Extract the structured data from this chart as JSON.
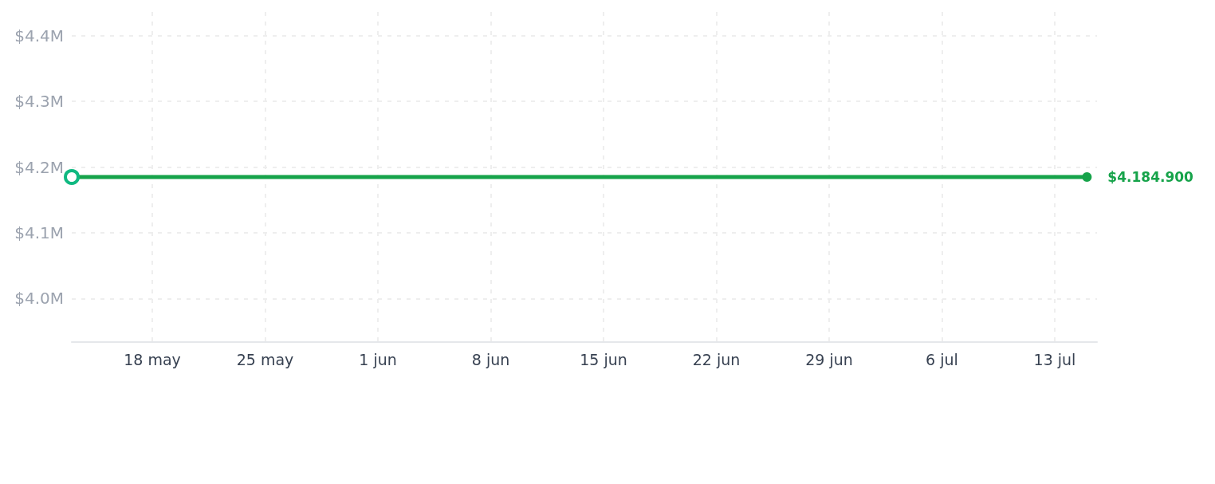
{
  "chart_data": {
    "type": "line",
    "x": [
      "--05-13",
      "--07-15"
    ],
    "series": [
      {
        "color": "#16a34a",
        "colors": [
          "#10b981",
          "#16a34a"
        ],
        "values": [
          4184900,
          4184900
        ],
        "value_labels": [
          null,
          "$4.184.900"
        ]
      }
    ],
    "xlim": [
      "--05-13",
      "--07-15T15:00"
    ],
    "xticks": [
      {
        "value": "--05-18",
        "label": "18 may"
      },
      {
        "value": "--05-25",
        "label": "25 may"
      },
      {
        "value": "--06-01",
        "label": "1 jun"
      },
      {
        "value": "--06-08",
        "label": "8 jun"
      },
      {
        "value": "--06-15",
        "label": "15 jun"
      },
      {
        "value": "--06-22",
        "label": "22 jun"
      },
      {
        "value": "--06-29",
        "label": "29 jun"
      },
      {
        "value": "--07-06",
        "label": "6 jul"
      },
      {
        "value": "--07-13",
        "label": "13 jul"
      }
    ],
    "ylim": [
      3933800,
      4436000
    ],
    "yticks": [
      {
        "value": 4000000,
        "label": "$4.0M"
      },
      {
        "value": 4100000,
        "label": "$4.1M"
      },
      {
        "value": 4200000,
        "label": "$4.2M"
      },
      {
        "value": 4300000,
        "label": "$4.3M"
      },
      {
        "value": 4400000,
        "label": "$4.4M"
      }
    ],
    "grid": true,
    "marker": "circle",
    "line_style": "solid"
  }
}
